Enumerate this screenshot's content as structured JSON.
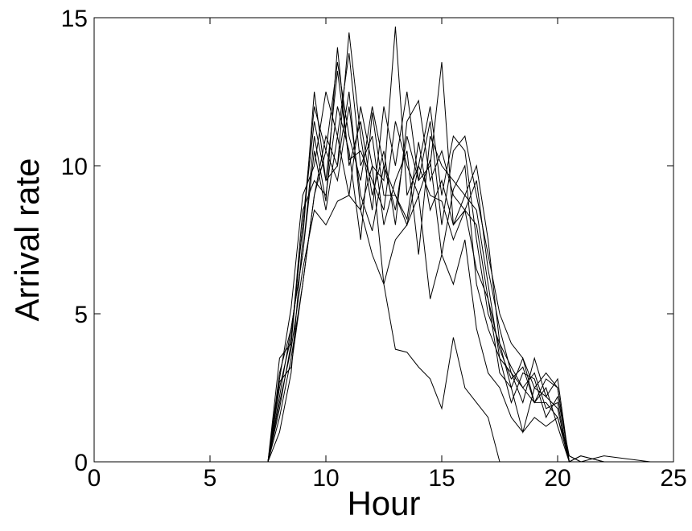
{
  "chart_data": {
    "type": "line",
    "x_label": "Hour",
    "y_label": "Arrival rate",
    "xlim": [
      0,
      25
    ],
    "ylim": [
      0,
      15
    ],
    "xticks": [
      0,
      5,
      10,
      15,
      20,
      25
    ],
    "yticks": [
      0,
      5,
      10,
      15
    ],
    "x": [
      0,
      7.5,
      8,
      8.5,
      9,
      9.5,
      10,
      10.5,
      11,
      11.5,
      12,
      12.5,
      13,
      13.5,
      14,
      14.5,
      15,
      15.5,
      16,
      16.5,
      17,
      17.5,
      18,
      18.5,
      19,
      19.5,
      20,
      20.5,
      21,
      22,
      24
    ],
    "series": [
      {
        "color": "#000000",
        "values": [
          0,
          0,
          2.5,
          4.2,
          8,
          12,
          10.5,
          13.5,
          11,
          9.5,
          12,
          10,
          8.5,
          11,
          9.5,
          10,
          13.5,
          8,
          9,
          8.5,
          6,
          3.5,
          3,
          2.5,
          2,
          2.8,
          2.5,
          0,
          0,
          0,
          0
        ]
      },
      {
        "color": "#000000",
        "values": [
          0,
          0,
          1.5,
          3.5,
          6,
          9,
          11,
          10,
          12.5,
          8.5,
          10,
          9.5,
          14.7,
          9,
          10,
          12,
          9,
          11,
          10.5,
          7.5,
          5,
          4,
          2.5,
          3.5,
          2,
          2,
          1.5,
          0.2,
          0,
          0,
          0
        ]
      },
      {
        "color": "#000000",
        "values": [
          0,
          0,
          3,
          4.5,
          7,
          11,
          8.8,
          14,
          10,
          11.5,
          9,
          10.5,
          8,
          11.5,
          12.2,
          9.5,
          10.5,
          9,
          8.5,
          9.5,
          6.5,
          4.5,
          3,
          2,
          3.5,
          2.2,
          2.8,
          0,
          0.2,
          0,
          0
        ]
      },
      {
        "color": "#000000",
        "values": [
          0,
          0,
          2,
          3.8,
          6.5,
          8.5,
          8,
          8.8,
          9,
          8.5,
          7,
          6,
          3.8,
          3.7,
          3.2,
          2.8,
          1.8,
          4.2,
          2.5,
          2,
          1.5,
          0,
          0,
          0,
          0,
          0,
          0,
          0,
          0,
          0,
          0
        ]
      },
      {
        "color": "#000000",
        "values": [
          0,
          0,
          2.8,
          5.2,
          9,
          10,
          12.5,
          11,
          13.8,
          10,
          11,
          8,
          9.5,
          10.5,
          7,
          11,
          10,
          9.5,
          9,
          10,
          7.5,
          4,
          3.2,
          2.5,
          3,
          1.8,
          2,
          0,
          0,
          0,
          0
        ]
      },
      {
        "color": "#000000",
        "values": [
          0,
          0,
          3.5,
          4,
          8.5,
          9.5,
          9,
          12,
          10.5,
          7.5,
          11.8,
          9,
          9,
          8,
          10,
          9,
          8.8,
          7.5,
          8.5,
          6.5,
          5.5,
          3,
          2.5,
          1,
          2.5,
          2.2,
          1.8,
          0,
          0,
          0.2,
          0
        ]
      },
      {
        "color": "#000000",
        "values": [
          0,
          0,
          1,
          3,
          7.5,
          12.5,
          9.5,
          10,
          14.5,
          11,
          8.5,
          12,
          10,
          12.5,
          9.5,
          11.5,
          8,
          10.5,
          11,
          9,
          7,
          5,
          4,
          3.5,
          2.5,
          3,
          2.5,
          0,
          0,
          0,
          0
        ]
      },
      {
        "color": "#000000",
        "values": [
          0,
          0,
          2.2,
          4.5,
          7,
          10.5,
          8.5,
          11,
          9,
          12,
          10,
          6,
          7.5,
          8,
          9,
          5.5,
          7,
          6,
          7.5,
          4.5,
          3,
          2.5,
          1.5,
          1,
          1.5,
          1.2,
          1.5,
          0,
          0.2,
          0,
          0
        ]
      },
      {
        "color": "#000000",
        "values": [
          0,
          0,
          2.7,
          3.2,
          6,
          9,
          10.5,
          9.5,
          12,
          9,
          7.8,
          10,
          9,
          8.2,
          10.8,
          8.5,
          9.5,
          8,
          8.5,
          8,
          5.5,
          3.8,
          2.8,
          3.2,
          2,
          2.5,
          1.2,
          0,
          0,
          0,
          0
        ]
      },
      {
        "color": "#000000",
        "values": [
          0,
          0,
          1.8,
          4,
          8,
          11.5,
          9.5,
          13.2,
          10.2,
          10.5,
          9.5,
          8.5,
          11.5,
          10,
          9,
          10.2,
          7,
          9.2,
          10,
          6,
          4.5,
          3.5,
          2,
          3,
          2.8,
          1.5,
          2.2,
          0.2,
          0,
          0,
          0
        ]
      }
    ]
  }
}
